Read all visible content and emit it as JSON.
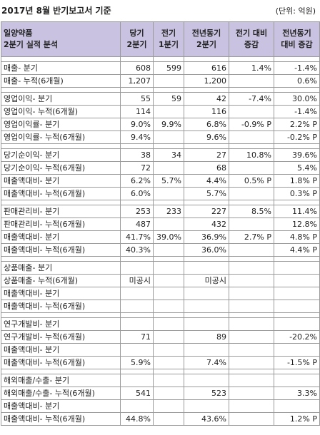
{
  "title": "2017년 8월 반기보고서 기준",
  "unit": "(단위: 억원)",
  "header": {
    "first_line1": "일양약품",
    "first_line2": "2분기 실적 분석",
    "cols": [
      {
        "l1": "당기",
        "l2": "2분기"
      },
      {
        "l1": "전기",
        "l2": "1분기"
      },
      {
        "l1": "전년동기",
        "l2": "2분기"
      },
      {
        "l1": "전기 대비",
        "l2": "증감"
      },
      {
        "l1": "전년동기",
        "l2": "대비 증감"
      }
    ]
  },
  "groups": [
    [
      [
        "매출- 분기",
        "608",
        "599",
        "616",
        "1.4%",
        "-1.4%"
      ],
      [
        "매출- 누적(6개월)",
        "1,207",
        "",
        "1,200",
        "",
        "0.6%"
      ]
    ],
    [
      [
        "영업이익- 분기",
        "55",
        "59",
        "42",
        "-7.4%",
        "30.0%"
      ],
      [
        "영업이익- 누적(6개월)",
        "114",
        "",
        "116",
        "",
        "-1.4%"
      ],
      [
        "영업이익률- 분기",
        "9.0%",
        "9.9%",
        "6.8%",
        "-0.9% P",
        "2.2% P"
      ],
      [
        "영업이익률- 누적(6개월)",
        "9.4%",
        "",
        "9.6%",
        "",
        "-0.2% P"
      ]
    ],
    [
      [
        "당기순이익- 분기",
        "38",
        "34",
        "27",
        "10.8%",
        "39.6%"
      ],
      [
        "당기순이익- 누적(6개월)",
        "72",
        "",
        "68",
        "",
        "5.4%"
      ],
      [
        "매출액대비- 분기",
        "6.2%",
        "5.7%",
        "4.4%",
        "0.5% P",
        "1.8% P"
      ],
      [
        "매출액대비- 누적(6개월)",
        "6.0%",
        "",
        "5.7%",
        "",
        "0.3% P"
      ]
    ],
    [
      [
        "판매관리비- 분기",
        "253",
        "233",
        "227",
        "8.5%",
        "11.4%"
      ],
      [
        "판매관리비- 누적(6개월)",
        "487",
        "",
        "432",
        "",
        "12.8%"
      ],
      [
        "매출액대비- 분기",
        "41.7%",
        "39.0%",
        "36.9%",
        "2.7% P",
        "4.8% P"
      ],
      [
        "매출액대비- 누적(6개월)",
        "40.3%",
        "",
        "36.0%",
        "",
        "4.4% P"
      ]
    ],
    [
      [
        "상품매출- 분기",
        "",
        "",
        "",
        "",
        ""
      ],
      [
        "상품매출- 누적(6개월)",
        "미공시",
        "",
        "미공시",
        "",
        ""
      ],
      [
        "매출액대비- 분기",
        "",
        "",
        "",
        "",
        ""
      ],
      [
        "매출액대비- 누적(6개월)",
        "",
        "",
        "",
        "",
        ""
      ]
    ],
    [
      [
        "연구개발비- 분기",
        "",
        "",
        "",
        "",
        ""
      ],
      [
        "연구개발비- 누적(6개월)",
        "71",
        "",
        "89",
        "",
        "-20.2%"
      ],
      [
        "매출액대비- 분기",
        "",
        "",
        "",
        "",
        ""
      ],
      [
        "매출액대비- 누적(6개월)",
        "5.9%",
        "",
        "7.4%",
        "",
        "-1.5% P"
      ]
    ],
    [
      [
        "해외매출/수출- 분기",
        "",
        "",
        "",
        "",
        ""
      ],
      [
        "해외매출/수출- 누적(6개월)",
        "541",
        "",
        "523",
        "",
        "3.3%"
      ],
      [
        "매출액대비- 분기",
        "",
        "",
        "",
        "",
        ""
      ],
      [
        "매출액대비- 누적(6개월)",
        "44.8%",
        "",
        "43.6%",
        "",
        "1.2% P"
      ]
    ]
  ]
}
